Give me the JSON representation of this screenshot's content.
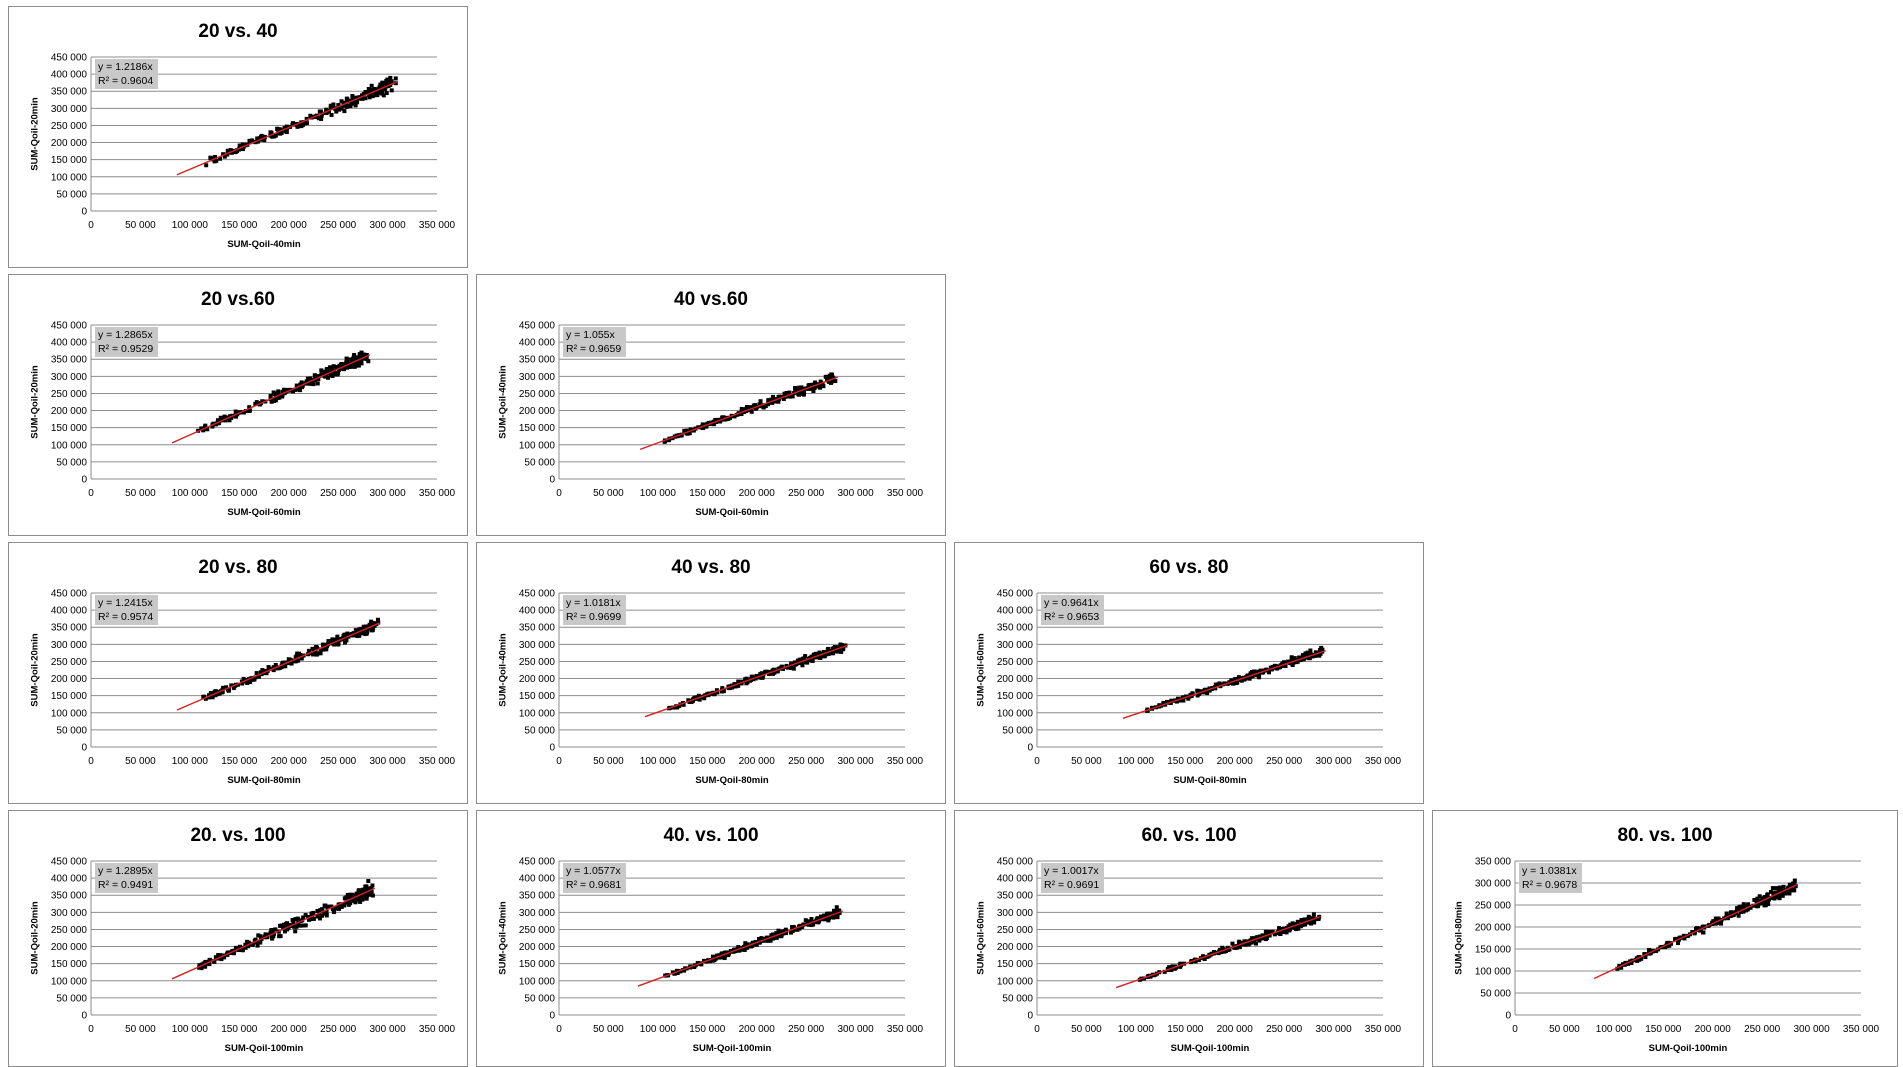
{
  "chart_data": [
    {
      "type": "scatter",
      "title": "20 vs. 40",
      "xlabel": "SUM-Qoil-40min",
      "ylabel": "SUM-Qoil-20min",
      "equation": "y = 1.2186x",
      "r2": "R² = 0.9604",
      "slope": 1.2186,
      "xlim": [
        0,
        350000
      ],
      "ylim": [
        0,
        450000
      ],
      "xticks": [
        "0",
        "50 000",
        "100 000",
        "150 000",
        "200 000",
        "250 000",
        "300 000",
        "350 000"
      ],
      "yticks": [
        "0",
        "50 000",
        "100 000",
        "150 000",
        "200 000",
        "250 000",
        "300 000",
        "350 000",
        "400 000",
        "450 000"
      ],
      "x_range": [
        87000,
        310000
      ],
      "spread": 0.05,
      "marker_color": "#000000",
      "trendline_color": "#d62020"
    },
    {
      "type": "scatter",
      "title": "20 vs.60",
      "xlabel": "SUM-Qoil-60min",
      "ylabel": "SUM-Qoil-20min",
      "equation": "y = 1.2865x",
      "r2": "R² = 0.9529",
      "slope": 1.2865,
      "xlim": [
        0,
        350000
      ],
      "ylim": [
        0,
        450000
      ],
      "xticks": [
        "0",
        "50 000",
        "100 000",
        "150 000",
        "200 000",
        "250 000",
        "300 000",
        "350 000"
      ],
      "yticks": [
        "0",
        "50 000",
        "100 000",
        "150 000",
        "200 000",
        "250 000",
        "300 000",
        "350 000",
        "400 000",
        "450 000"
      ],
      "x_range": [
        82000,
        282000
      ],
      "spread": 0.055,
      "marker_color": "#000000",
      "trendline_color": "#d62020"
    },
    {
      "type": "scatter",
      "title": "40 vs.60",
      "xlabel": "SUM-Qoil-60min",
      "ylabel": "SUM-Qoil-40min",
      "equation": "y = 1.055x",
      "r2": "R² = 0.9659",
      "slope": 1.055,
      "xlim": [
        0,
        350000
      ],
      "ylim": [
        0,
        450000
      ],
      "xticks": [
        "0",
        "50 000",
        "100 000",
        "150 000",
        "200 000",
        "250 000",
        "300 000",
        "350 000"
      ],
      "yticks": [
        "0",
        "50 000",
        "100 000",
        "150 000",
        "200 000",
        "250 000",
        "300 000",
        "350 000",
        "400 000",
        "450 000"
      ],
      "x_range": [
        82000,
        282000
      ],
      "spread": 0.045,
      "marker_color": "#000000",
      "trendline_color": "#d62020"
    },
    {
      "type": "scatter",
      "title": "20 vs. 80",
      "xlabel": "SUM-Qoil-80min",
      "ylabel": "SUM-Qoil-20min",
      "equation": "y = 1.2415x",
      "r2": "R² = 0.9574",
      "slope": 1.2415,
      "xlim": [
        0,
        350000
      ],
      "ylim": [
        0,
        450000
      ],
      "xticks": [
        "0",
        "50 000",
        "100 000",
        "150 000",
        "200 000",
        "250 000",
        "300 000",
        "350 000"
      ],
      "yticks": [
        "0",
        "50 000",
        "100 000",
        "150 000",
        "200 000",
        "250 000",
        "300 000",
        "350 000",
        "400 000",
        "450 000"
      ],
      "x_range": [
        87000,
        292000
      ],
      "spread": 0.05,
      "marker_color": "#000000",
      "trendline_color": "#d62020"
    },
    {
      "type": "scatter",
      "title": "40 vs. 80",
      "xlabel": "SUM-Qoil-80min",
      "ylabel": "SUM-Qoil-40min",
      "equation": "y = 1.0181x",
      "r2": "R² = 0.9699",
      "slope": 1.0181,
      "xlim": [
        0,
        350000
      ],
      "ylim": [
        0,
        450000
      ],
      "xticks": [
        "0",
        "50 000",
        "100 000",
        "150 000",
        "200 000",
        "250 000",
        "300 000",
        "350 000"
      ],
      "yticks": [
        "0",
        "50 000",
        "100 000",
        "150 000",
        "200 000",
        "250 000",
        "300 000",
        "350 000",
        "400 000",
        "450 000"
      ],
      "x_range": [
        87000,
        292000
      ],
      "spread": 0.04,
      "marker_color": "#000000",
      "trendline_color": "#d62020"
    },
    {
      "type": "scatter",
      "title": "60 vs. 80",
      "xlabel": "SUM-Qoil-80min",
      "ylabel": "SUM-Qoil-60min",
      "equation": "y = 0.9641x",
      "r2": "R² = 0.9653",
      "slope": 0.9641,
      "xlim": [
        0,
        350000
      ],
      "ylim": [
        0,
        450000
      ],
      "xticks": [
        "0",
        "50 000",
        "100 000",
        "150 000",
        "200 000",
        "250 000",
        "300 000",
        "350 000"
      ],
      "yticks": [
        "0",
        "50 000",
        "100 000",
        "150 000",
        "200 000",
        "250 000",
        "300 000",
        "350 000",
        "400 000",
        "450 000"
      ],
      "x_range": [
        87000,
        292000
      ],
      "spread": 0.045,
      "marker_color": "#000000",
      "trendline_color": "#d62020"
    },
    {
      "type": "scatter",
      "title": "20. vs. 100",
      "xlabel": "SUM-Qoil-100min",
      "ylabel": "SUM-Qoil-20min",
      "equation": "y = 1.2895x",
      "r2": "R² = 0.9491",
      "slope": 1.2895,
      "xlim": [
        0,
        350000
      ],
      "ylim": [
        0,
        450000
      ],
      "xticks": [
        "0",
        "50 000",
        "100 000",
        "150 000",
        "200 000",
        "250 000",
        "300 000",
        "350 000"
      ],
      "yticks": [
        "0",
        "50 000",
        "100 000",
        "150 000",
        "200 000",
        "250 000",
        "300 000",
        "350 000",
        "400 000",
        "450 000"
      ],
      "x_range": [
        82000,
        287000
      ],
      "spread": 0.06,
      "marker_color": "#000000",
      "trendline_color": "#d62020"
    },
    {
      "type": "scatter",
      "title": "40. vs. 100",
      "xlabel": "SUM-Qoil-100min",
      "ylabel": "SUM-Qoil-40min",
      "equation": "y = 1.0577x",
      "r2": "R² = 0.9681",
      "slope": 1.0577,
      "xlim": [
        0,
        350000
      ],
      "ylim": [
        0,
        450000
      ],
      "xticks": [
        "0",
        "50 000",
        "100 000",
        "150 000",
        "200 000",
        "250 000",
        "300 000",
        "350 000"
      ],
      "yticks": [
        "0",
        "50 000",
        "100 000",
        "150 000",
        "200 000",
        "250 000",
        "300 000",
        "350 000",
        "400 000",
        "450 000"
      ],
      "x_range": [
        80000,
        287000
      ],
      "spread": 0.045,
      "marker_color": "#000000",
      "trendline_color": "#d62020"
    },
    {
      "type": "scatter",
      "title": "60. vs. 100",
      "xlabel": "SUM-Qoil-100min",
      "ylabel": "SUM-Qoil-60min",
      "equation": "y = 1.0017x",
      "r2": "R² = 0.9691",
      "slope": 1.0017,
      "xlim": [
        0,
        350000
      ],
      "ylim": [
        0,
        450000
      ],
      "xticks": [
        "0",
        "50 000",
        "100 000",
        "150 000",
        "200 000",
        "250 000",
        "300 000",
        "350 000"
      ],
      "yticks": [
        "0",
        "50 000",
        "100 000",
        "150 000",
        "200 000",
        "250 000",
        "300 000",
        "350 000",
        "400 000",
        "450 000"
      ],
      "x_range": [
        80000,
        287000
      ],
      "spread": 0.045,
      "marker_color": "#000000",
      "trendline_color": "#d62020"
    },
    {
      "type": "scatter",
      "title": "80. vs. 100",
      "xlabel": "SUM-Qoil-100min",
      "ylabel": "SUM-Qoil-80min",
      "equation": "y = 1.0381x",
      "r2": "R² = 0.9678",
      "slope": 1.0381,
      "xlim": [
        0,
        350000
      ],
      "ylim": [
        0,
        350000
      ],
      "xticks": [
        "0",
        "50 000",
        "100 000",
        "150 000",
        "200 000",
        "250 000",
        "300 000",
        "350 000"
      ],
      "yticks": [
        "0",
        "50 000",
        "100 000",
        "150 000",
        "200 000",
        "250 000",
        "300 000",
        "350 000"
      ],
      "x_range": [
        80000,
        285000
      ],
      "spread": 0.045,
      "marker_color": "#000000",
      "trendline_color": "#d62020"
    }
  ]
}
